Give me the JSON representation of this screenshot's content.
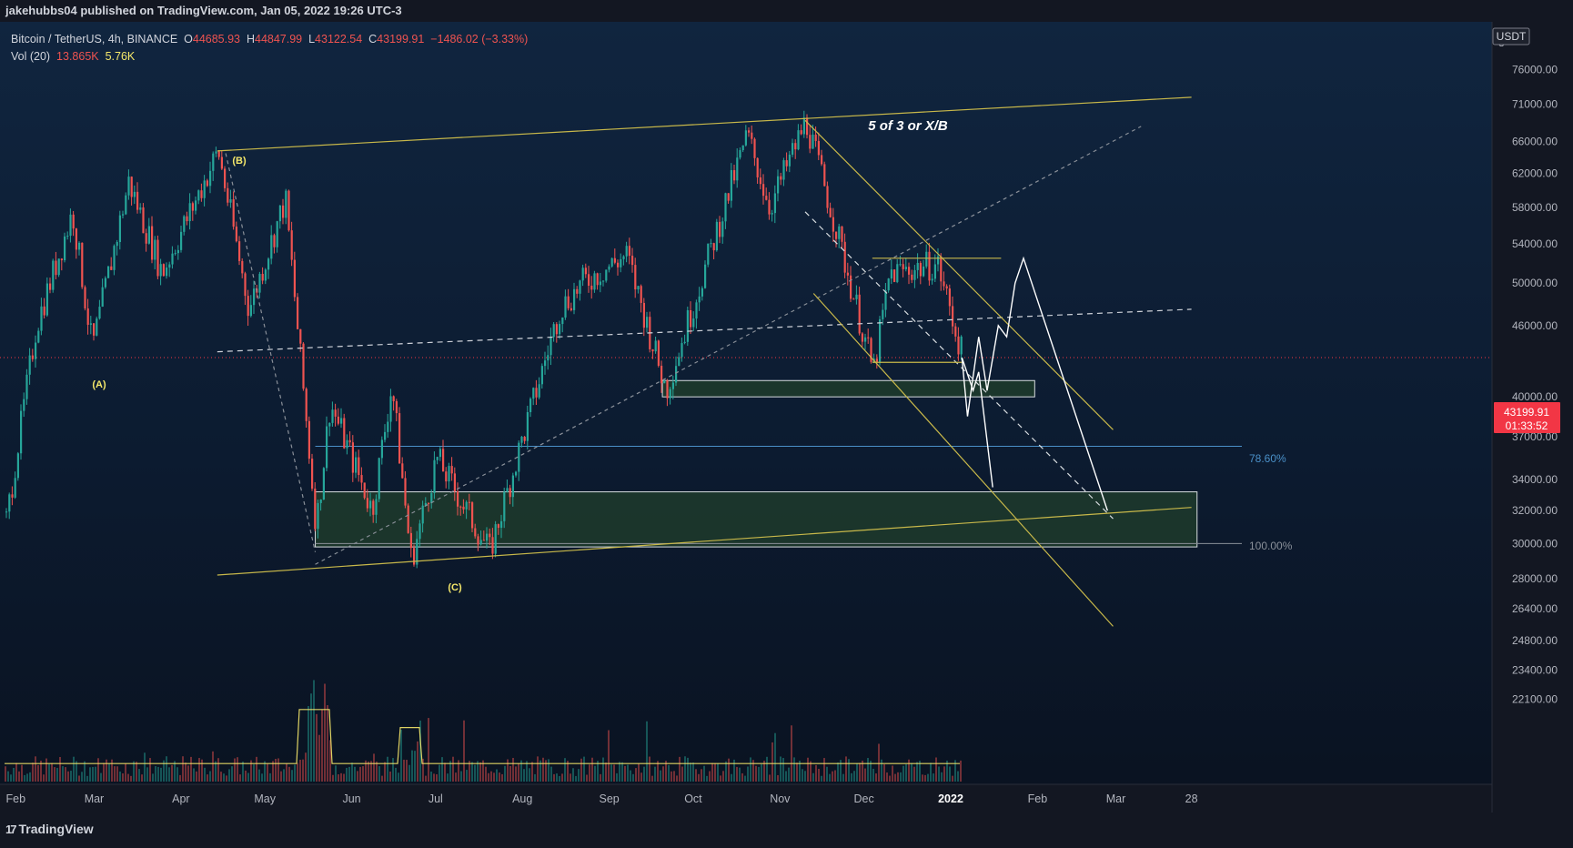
{
  "header": {
    "publisher": "jakehubbs04 published on TradingView.com, Jan 05, 2022 19:26 UTC-3"
  },
  "legend": {
    "symbol": "Bitcoin / TetherUS, 4h, BINANCE",
    "open_label": "O",
    "open": "44685.93",
    "high_label": "H",
    "high": "44847.99",
    "low_label": "L",
    "low": "43122.54",
    "close_label": "C",
    "close": "43199.91",
    "change": "−1486.02 (−3.33%)",
    "vol_label": "Vol (20)",
    "vol_a": "13.865K",
    "vol_b": "5.76K"
  },
  "price_axis": {
    "currency": "USDT",
    "ticks": [
      "76000.00",
      "71000.00",
      "66000.00",
      "62000.00",
      "58000.00",
      "54000.00",
      "50000.00",
      "46000.00",
      "40000.00",
      "37000.00",
      "34000.00",
      "32000.00",
      "30000.00",
      "28000.00",
      "26400.00",
      "24800.00",
      "23400.00",
      "22100.00"
    ],
    "current_price": "43199.91",
    "countdown": "01:33:52",
    "top_partial": "8"
  },
  "time_axis": {
    "ticks": [
      "Feb",
      "Mar",
      "Apr",
      "May",
      "Jun",
      "Jul",
      "Aug",
      "Sep",
      "Oct",
      "Nov",
      "Dec",
      "2022",
      "Feb",
      "Mar",
      "28"
    ]
  },
  "annotations": {
    "wave_a": "(A)",
    "wave_b": "(B)",
    "wave_c": "(C)",
    "top_label": "5 of 3 or X/B",
    "fib_786": "78.60%",
    "fib_100": "100.00%"
  },
  "footer": {
    "brand": "TradingView",
    "logo": "17"
  },
  "colors": {
    "up": "#26a69a",
    "down": "#ef5350",
    "channel": "#c8b84a",
    "fib_786": "#4a90c8",
    "zone": "#1f3b2c",
    "volume_ma": "#f5e86a"
  },
  "chart_data": {
    "type": "candlestick",
    "symbol": "BTCUSDT",
    "interval": "4h",
    "scale": "log",
    "ylim": [
      21500,
      82000
    ],
    "x": [
      "2021-02",
      "2021-03",
      "2021-04",
      "2021-05",
      "2021-06",
      "2021-07",
      "2021-08",
      "2021-09",
      "2021-10",
      "2021-11",
      "2021-12",
      "2022-01"
    ],
    "price_path": [
      [
        "2021-01-28",
        31000
      ],
      [
        "2021-02-08",
        46000
      ],
      [
        "2021-02-21",
        57500
      ],
      [
        "2021-02-28",
        44000
      ],
      [
        "2021-03-13",
        61000
      ],
      [
        "2021-03-25",
        51000
      ],
      [
        "2021-04-14",
        64800
      ],
      [
        "2021-04-25",
        47500
      ],
      [
        "2021-05-08",
        59000
      ],
      [
        "2021-05-19",
        31000
      ],
      [
        "2021-05-24",
        39500
      ],
      [
        "2021-06-08",
        32000
      ],
      [
        "2021-06-15",
        41000
      ],
      [
        "2021-06-22",
        29000
      ],
      [
        "2021-07-01",
        35500
      ],
      [
        "2021-07-20",
        29500
      ],
      [
        "2021-08-14",
        47500
      ],
      [
        "2021-08-22",
        50000
      ],
      [
        "2021-09-07",
        52800
      ],
      [
        "2021-09-21",
        40500
      ],
      [
        "2021-10-20",
        66900
      ],
      [
        "2021-10-28",
        58000
      ],
      [
        "2021-11-10",
        68800
      ],
      [
        "2021-11-20",
        56500
      ],
      [
        "2021-12-04",
        42000
      ],
      [
        "2021-12-10",
        51000
      ],
      [
        "2021-12-27",
        51900
      ],
      [
        "2022-01-05",
        43199.91
      ]
    ],
    "projection_path": [
      [
        "2022-01-05",
        43199.91
      ],
      [
        "2022-01-07",
        38500
      ],
      [
        "2022-01-11",
        45000
      ],
      [
        "2022-01-14",
        40500
      ],
      [
        "2022-01-18",
        46000
      ],
      [
        "2022-01-21",
        45000
      ],
      [
        "2022-01-24",
        50000
      ],
      [
        "2022-01-27",
        52500
      ],
      [
        "2022-02-26",
        32000
      ]
    ],
    "projection_alt": [
      [
        "2022-01-05",
        43199.91
      ],
      [
        "2022-01-09",
        40500
      ],
      [
        "2022-01-11",
        42000
      ],
      [
        "2022-01-16",
        33500
      ]
    ],
    "levels": {
      "fib_786": 36300,
      "fib_100": 30000
    },
    "zones": [
      {
        "from": 40000,
        "to": 41300
      },
      {
        "from": 29800,
        "to": 33200
      }
    ],
    "waves": [
      {
        "label": "(A)",
        "date": "2021-02-28",
        "price": 44000
      },
      {
        "label": "(B)",
        "date": "2021-04-14",
        "price": 64800
      },
      {
        "label": "(C)",
        "date": "2021-06-22",
        "price": 29000
      },
      {
        "label": "5 of 3 or X/B",
        "date": "2021-11-10",
        "price": 68800
      }
    ]
  }
}
